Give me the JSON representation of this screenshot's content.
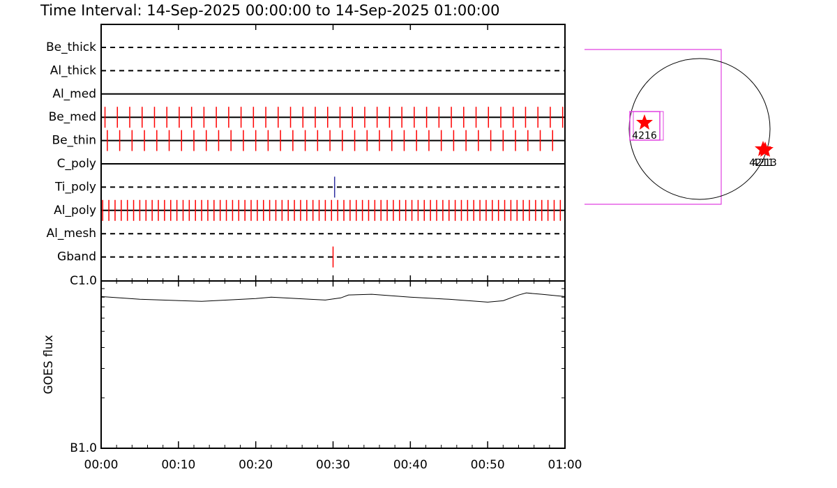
{
  "title": "Time Interval: 14-Sep-2025 00:00:00 to 14-Sep-2025 01:00:00",
  "filters": [
    {
      "name": "Be_thick",
      "line": "dashed",
      "color": "#ff0000",
      "times": []
    },
    {
      "name": "Al_thick",
      "line": "dashed",
      "color": "#ff0000",
      "times": []
    },
    {
      "name": "Al_med",
      "line": "solid",
      "color": "#ff0000",
      "times": []
    },
    {
      "name": "Be_med",
      "line": "solid",
      "color": "#ff0000",
      "times": [
        0.5,
        2.1,
        3.7,
        5.3,
        6.9,
        8.5,
        10.1,
        11.7,
        13.3,
        14.9,
        16.5,
        18.1,
        19.7,
        21.3,
        22.9,
        24.5,
        26.1,
        27.7,
        29.3,
        30.9,
        32.5,
        34.1,
        35.7,
        37.3,
        38.9,
        40.5,
        42.1,
        43.7,
        45.3,
        46.9,
        48.5,
        50.1,
        51.7,
        53.3,
        54.9,
        56.5,
        58.1,
        59.7
      ]
    },
    {
      "name": "Be_thin",
      "line": "solid",
      "color": "#ff0000",
      "times": [
        0.8,
        2.4,
        4,
        5.6,
        7.2,
        8.8,
        10.4,
        12,
        13.6,
        15.2,
        16.8,
        18.4,
        20,
        21.6,
        23.2,
        24.8,
        26.4,
        28,
        29.6,
        31.2,
        32.8,
        34.4,
        36,
        37.6,
        39.2,
        40.8,
        42.4,
        44,
        45.6,
        47.2,
        48.8,
        50.4,
        52,
        53.6,
        55.2,
        56.8,
        58.4
      ]
    },
    {
      "name": "C_poly",
      "line": "solid",
      "color": "#ff0000",
      "times": []
    },
    {
      "name": "Ti_poly",
      "line": "dashed",
      "color": "#3030a0",
      "times": [
        30.2
      ]
    },
    {
      "name": "Al_poly",
      "line": "solid",
      "color": "#ff0000",
      "times": [
        0.2,
        1,
        1.8,
        2.6,
        3.4,
        4.2,
        5,
        5.8,
        6.6,
        7.4,
        8.2,
        9,
        9.8,
        10.6,
        11.4,
        12.2,
        13,
        13.8,
        14.6,
        15.4,
        16.2,
        17,
        17.8,
        18.6,
        19.4,
        20.2,
        21,
        21.8,
        22.6,
        23.4,
        24.2,
        25,
        25.8,
        26.6,
        27.4,
        28.2,
        29,
        29.8,
        30.6,
        31.4,
        32.2,
        33,
        33.8,
        34.6,
        35.4,
        36.2,
        37,
        37.8,
        38.6,
        39.4,
        40.2,
        41,
        41.8,
        42.6,
        43.4,
        44.2,
        45,
        45.8,
        46.6,
        47.4,
        48.2,
        49,
        49.8,
        50.6,
        51.4,
        52.2,
        53,
        53.8,
        54.6,
        55.4,
        56.2,
        57,
        57.8,
        58.6,
        59.4
      ]
    },
    {
      "name": "Al_mesh",
      "line": "dashed",
      "color": "#ff0000",
      "times": []
    },
    {
      "name": "Gband",
      "line": "dashed",
      "color": "#ff0000",
      "times": [
        30
      ]
    }
  ],
  "goes": {
    "ylabel": "GOES flux",
    "log": true,
    "ylim": [
      1e-07,
      1e-06
    ],
    "yticks": [
      {
        "value": 1e-07,
        "label": "B1.0"
      },
      {
        "value": 1e-06,
        "label": "C1.0"
      }
    ],
    "yminor": [
      2e-07,
      3e-07,
      4e-07,
      5e-07,
      6e-07,
      7e-07,
      8e-07,
      9e-07
    ],
    "x": [
      0,
      5,
      13,
      20,
      22,
      27,
      29,
      31,
      32,
      35,
      40,
      45,
      50,
      52,
      54,
      55,
      57,
      60
    ],
    "values": [
      8.07e-07,
      7.77e-07,
      7.55e-07,
      7.85e-07,
      8e-07,
      7.77e-07,
      7.69e-07,
      7.92e-07,
      8.24e-07,
      8.32e-07,
      8e-07,
      7.77e-07,
      7.47e-07,
      7.62e-07,
      8.24e-07,
      8.48e-07,
      8.32e-07,
      8.07e-07
    ]
  },
  "xlim": [
    0,
    60
  ],
  "xticks": [
    {
      "value": 0,
      "label": "00:00"
    },
    {
      "value": 10,
      "label": "00:10"
    },
    {
      "value": 20,
      "label": "00:20"
    },
    {
      "value": 30,
      "label": "00:30"
    },
    {
      "value": 40,
      "label": "00:40"
    },
    {
      "value": 50,
      "label": "00:50"
    },
    {
      "value": 60,
      "label": "01:00"
    }
  ],
  "xminor": [
    2,
    4,
    6,
    8,
    12,
    14,
    16,
    18,
    22,
    24,
    26,
    28,
    32,
    34,
    36,
    38,
    42,
    44,
    46,
    48,
    52,
    54,
    56,
    58
  ],
  "map": {
    "regions": [
      "4216",
      "4211",
      "4213"
    ]
  }
}
